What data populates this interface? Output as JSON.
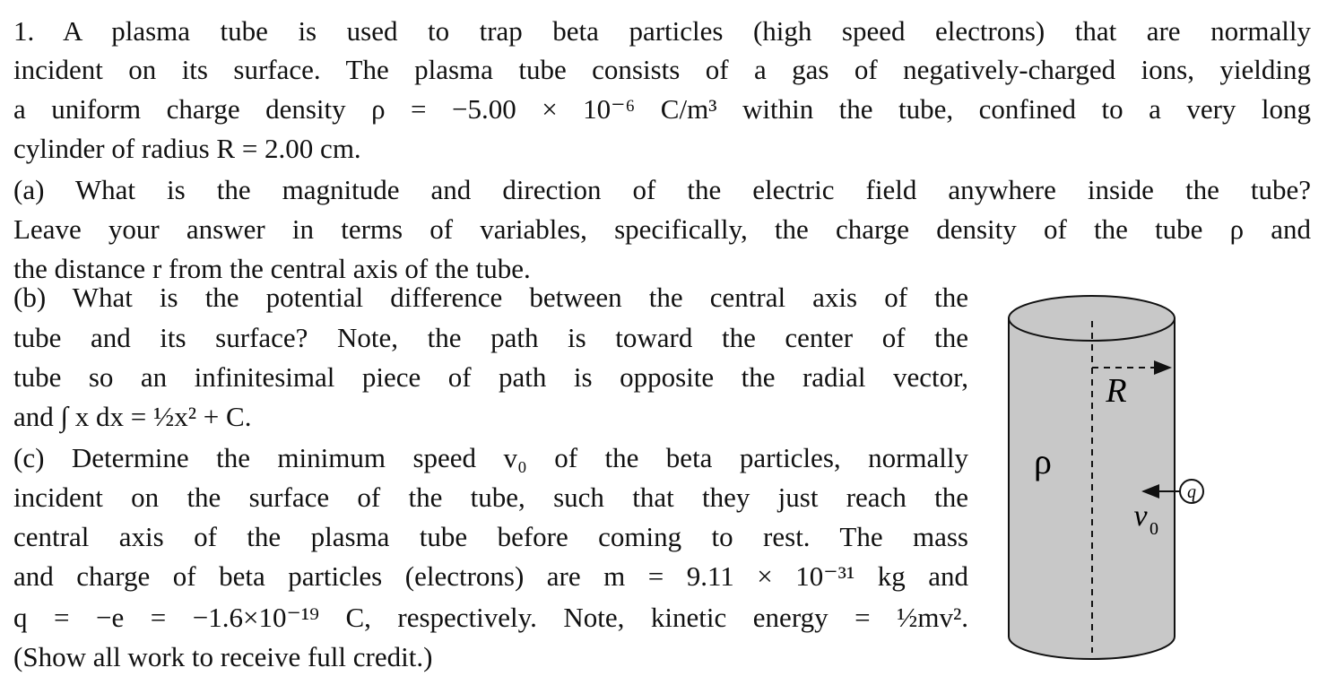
{
  "intro": {
    "lines": [
      "1.  A plasma tube is used to trap beta particles (high speed electrons) that are normally",
      "incident on its surface. The plasma tube consists of a gas of negatively-charged ions, yielding",
      "a uniform charge density ρ = −5.00 × 10⁻⁶ C/m³ within the tube, confined to a very long",
      "cylinder of radius R = 2.00 cm."
    ]
  },
  "parts": [
    {
      "lines": [
        "(a) What is the magnitude and direction of the electric field anywhere inside the tube?",
        "Leave your answer in terms of variables, specifically, the charge density of the tube ρ and",
        "the distance r from the central axis of the tube."
      ]
    },
    {
      "lines": [
        "(b) What is the potential difference between the central axis of the",
        "tube and its surface?  Note, the path is toward the center of the",
        "tube so an infinitesimal piece of path is opposite the radial vector,",
        "and ∫ x dx = ½x² + C."
      ]
    },
    {
      "lines": [
        "(c) Determine the minimum speed v₀ of the beta particles, normally",
        "incident on the surface of the tube, such that they just reach the",
        "central axis of the plasma tube before coming to rest.  The mass",
        "and charge of beta particles (electrons) are m = 9.11 × 10⁻³¹ kg and",
        "q = −e = −1.6×10⁻¹⁹ C, respectively. Note, kinetic energy = ½mv².",
        "(Show all work to receive full credit.)"
      ]
    }
  ],
  "figure": {
    "density_label": "ρ",
    "radius_label": "R",
    "velocity_label": "v",
    "velocity_subscript": "0",
    "charge_label": "q"
  }
}
